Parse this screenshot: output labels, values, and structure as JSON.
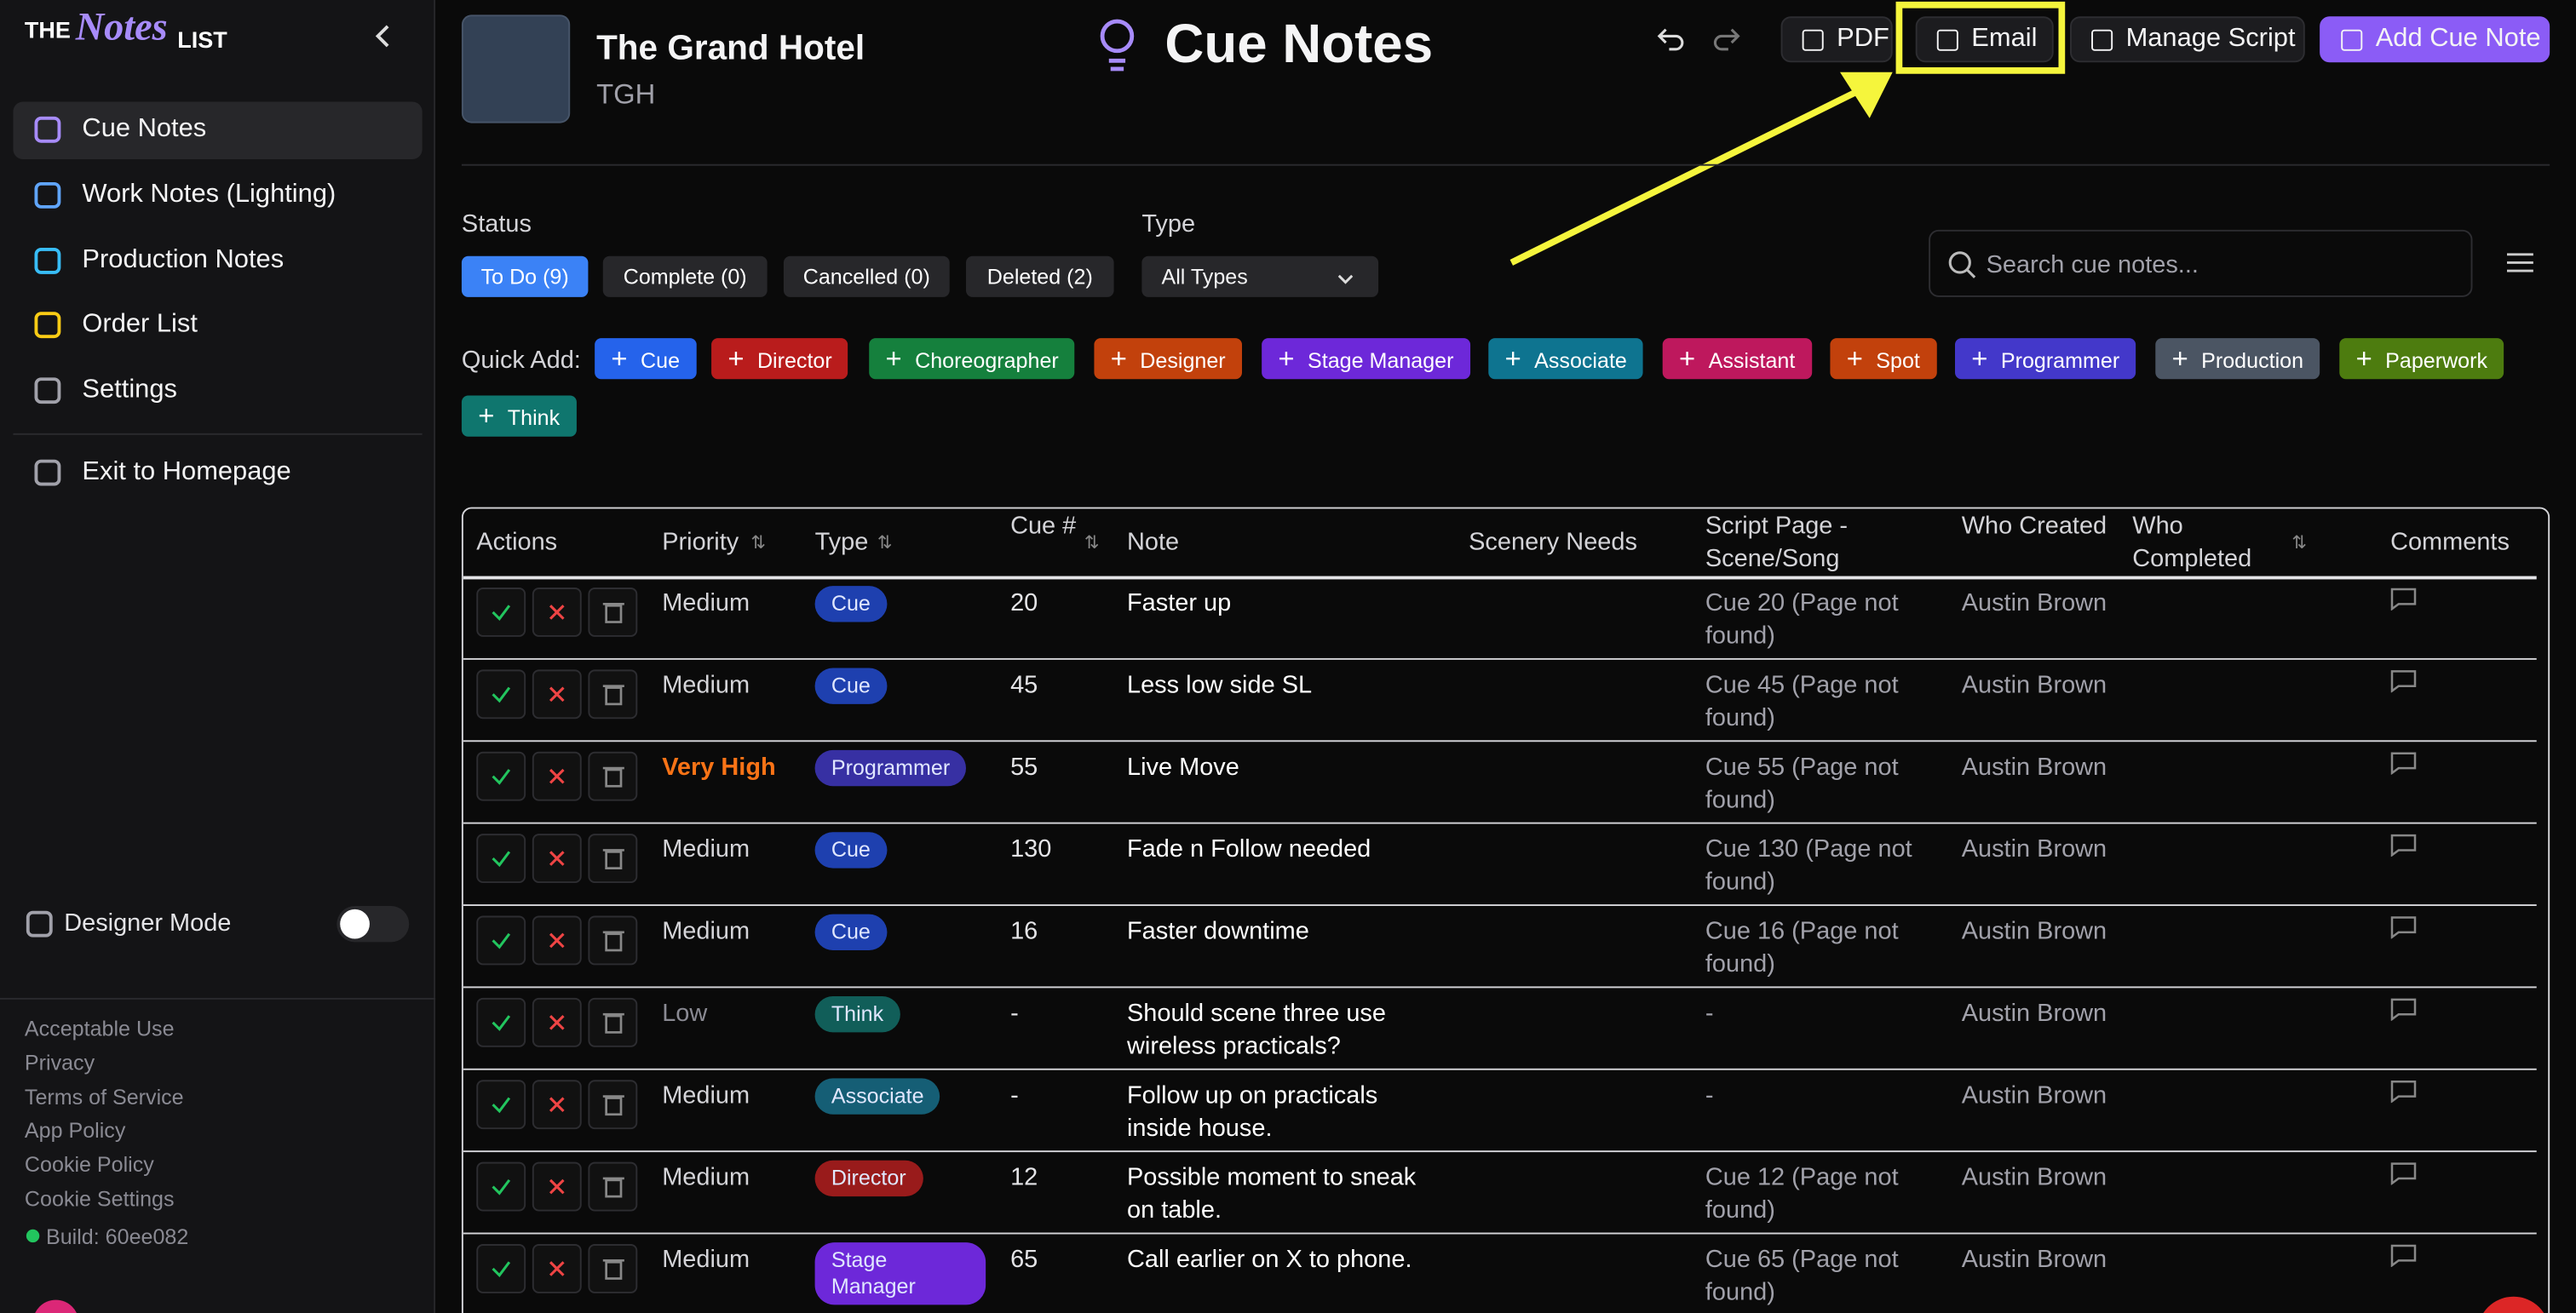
{
  "sidebar": {
    "logo_the": "THE",
    "logo_notes": "Notes",
    "logo_list": "LIST",
    "nav": [
      "Cue Notes",
      "Work Notes (Lighting)",
      "Production Notes",
      "Order List",
      "Settings"
    ],
    "exit": "Exit to Homepage",
    "designer_mode": "Designer Mode",
    "footer_links": [
      "Acceptable Use",
      "Privacy",
      "Terms of Service",
      "App Policy",
      "Cookie Policy",
      "Cookie Settings"
    ],
    "build": "Build: 60ee082"
  },
  "header": {
    "production": "The Grand Hotel",
    "abbr": "TGH",
    "page_title": "Cue Notes",
    "buttons": [
      "PDF",
      "Email",
      "Manage Script",
      "Add Cue Note"
    ]
  },
  "filters": {
    "status_label": "Status",
    "status": [
      "To Do (9)",
      "Complete (0)",
      "Cancelled (0)",
      "Deleted (2)"
    ],
    "type_label": "Type",
    "type_value": "All Types",
    "search_placeholder": "Search cue notes..."
  },
  "quick_add": {
    "label": "Quick Add:",
    "buttons": [
      {
        "label": "Cue",
        "color": "#2563eb"
      },
      {
        "label": "Director",
        "color": "#b91c1c"
      },
      {
        "label": "Choreographer",
        "color": "#15803d"
      },
      {
        "label": "Designer",
        "color": "#c2410c"
      },
      {
        "label": "Stage Manager",
        "color": "#6d28d9"
      },
      {
        "label": "Associate",
        "color": "#0e7490"
      },
      {
        "label": "Assistant",
        "color": "#be185d"
      },
      {
        "label": "Spot",
        "color": "#c2410c"
      },
      {
        "label": "Programmer",
        "color": "#4338ca"
      },
      {
        "label": "Production",
        "color": "#4b5563"
      },
      {
        "label": "Paperwork",
        "color": "#4d7c0f"
      },
      {
        "label": "Think",
        "color": "#0f766e"
      }
    ]
  },
  "table": {
    "columns": [
      "Actions",
      "Priority",
      "Type",
      "Cue #",
      "Note",
      "Scenery Needs",
      "Script Page - Scene/Song",
      "Who Created",
      "Who Completed",
      "Comments"
    ],
    "rows": [
      {
        "priority": "Medium",
        "priority_color": "#d4d4d8",
        "type": "Cue",
        "type_color": "#1e40af",
        "cue": "20",
        "note": "Faster up",
        "script": "Cue 20 (Page not found)",
        "created": "Austin Brown"
      },
      {
        "priority": "Medium",
        "priority_color": "#d4d4d8",
        "type": "Cue",
        "type_color": "#1e40af",
        "cue": "45",
        "note": "Less low side SL",
        "script": "Cue 45 (Page not found)",
        "created": "Austin Brown"
      },
      {
        "priority": "Very High",
        "priority_color": "#f97316",
        "type": "Programmer",
        "type_color": "#3730a3",
        "cue": "55",
        "note": "Live Move",
        "script": "Cue 55 (Page not found)",
        "created": "Austin Brown"
      },
      {
        "priority": "Medium",
        "priority_color": "#d4d4d8",
        "type": "Cue",
        "type_color": "#1e40af",
        "cue": "130",
        "note": "Fade n Follow needed",
        "script": "Cue 130 (Page not found)",
        "created": "Austin Brown"
      },
      {
        "priority": "Medium",
        "priority_color": "#d4d4d8",
        "type": "Cue",
        "type_color": "#1e40af",
        "cue": "16",
        "note": "Faster downtime",
        "script": "Cue 16 (Page not found)",
        "created": "Austin Brown"
      },
      {
        "priority": "Low",
        "priority_color": "#8a8a93",
        "type": "Think",
        "type_color": "#115e59",
        "cue": "-",
        "note": "Should scene three use wireless practicals?",
        "script": "-",
        "created": "Austin Brown"
      },
      {
        "priority": "Medium",
        "priority_color": "#d4d4d8",
        "type": "Associate",
        "type_color": "#155e75",
        "cue": "-",
        "note": "Follow up on practicals inside house.",
        "script": "-",
        "created": "Austin Brown"
      },
      {
        "priority": "Medium",
        "priority_color": "#d4d4d8",
        "type": "Director",
        "type_color": "#991b1b",
        "cue": "12",
        "note": "Possible moment to sneak on table.",
        "script": "Cue 12 (Page not found)",
        "created": "Austin Brown"
      },
      {
        "priority": "Medium",
        "priority_color": "#d4d4d8",
        "type": "Stage Manager",
        "type_color": "#6d28d9",
        "cue": "65",
        "note": "Call earlier on X to phone.",
        "script": "Cue 65 (Page not found)",
        "created": "Austin Brown"
      }
    ]
  }
}
